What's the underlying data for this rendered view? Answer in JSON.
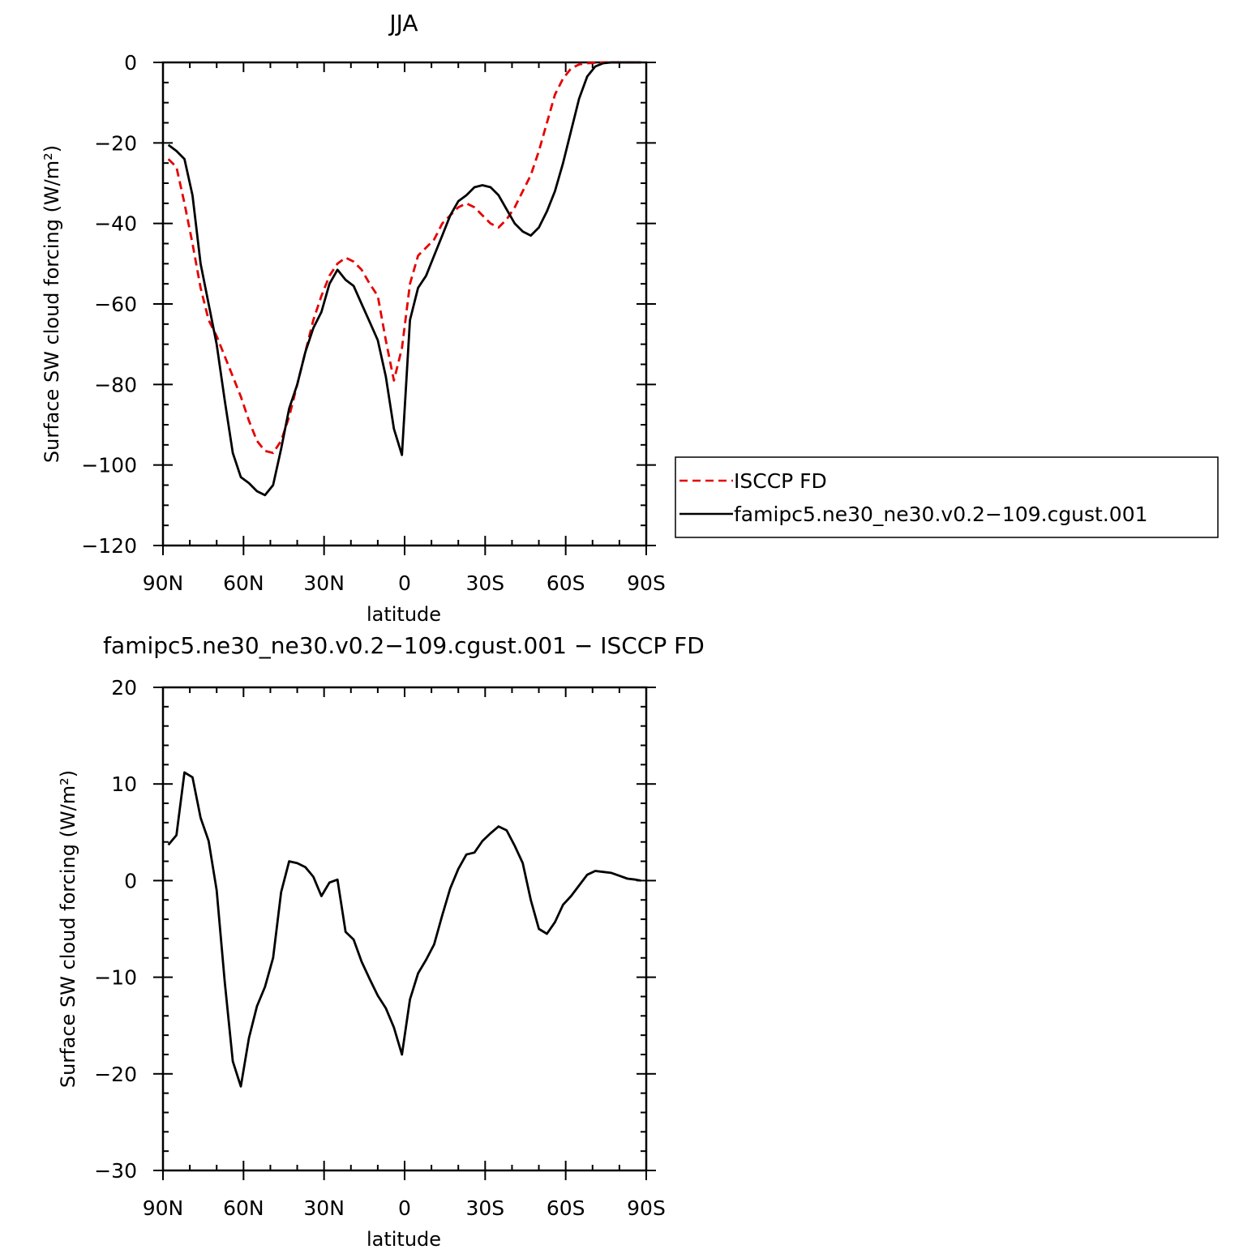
{
  "chart_data": [
    {
      "type": "line",
      "title": "JJA",
      "xlabel": "latitude",
      "ylabel": "Surface SW cloud forcing (W/m²)",
      "xlim": [
        90,
        -90
      ],
      "ylim": [
        -120,
        0
      ],
      "xticks": [
        {
          "value": 90,
          "label": "90N"
        },
        {
          "value": 60,
          "label": "60N"
        },
        {
          "value": 30,
          "label": "30N"
        },
        {
          "value": 0,
          "label": "0"
        },
        {
          "value": -30,
          "label": "30S"
        },
        {
          "value": -60,
          "label": "60S"
        },
        {
          "value": -90,
          "label": "90S"
        }
      ],
      "yticks": [
        {
          "value": 0,
          "label": "0"
        },
        {
          "value": -20,
          "label": "−20"
        },
        {
          "value": -40,
          "label": "−40"
        },
        {
          "value": -60,
          "label": "−60"
        },
        {
          "value": -80,
          "label": "−80"
        },
        {
          "value": -100,
          "label": "−100"
        },
        {
          "value": -120,
          "label": "−120"
        }
      ],
      "legend": {
        "placement": "right",
        "entries": [
          {
            "label": "ISCCP FD",
            "color": "#e60000",
            "style": "dashed"
          },
          {
            "label": "famipc5.ne30_ne30.v0.2−109.cgust.001",
            "color": "#000000",
            "style": "solid"
          }
        ]
      },
      "series": [
        {
          "name": "ISCCP FD",
          "color": "#e60000",
          "style": "dashed",
          "x": [
            88,
            85,
            82,
            79,
            76,
            73,
            70,
            67,
            64,
            61,
            58,
            55,
            52,
            49,
            46,
            43,
            40,
            37,
            34,
            31,
            28,
            25,
            22,
            19,
            16,
            13,
            10,
            7,
            4,
            1,
            -2,
            -5,
            -8,
            -11,
            -14,
            -17,
            -20,
            -23,
            -26,
            -29,
            -32,
            -35,
            -38,
            -41,
            -44,
            -47,
            -50,
            -53,
            -56,
            -59,
            -62,
            -65,
            -68,
            -71,
            -74,
            -77,
            -80,
            -83,
            -86,
            -88
          ],
          "y": [
            -24,
            -26,
            -35,
            -45,
            -56,
            -64,
            -68,
            -73,
            -78,
            -83,
            -89,
            -94,
            -96.5,
            -97,
            -94,
            -88,
            -80,
            -72,
            -64,
            -58,
            -53,
            -50,
            -48.5,
            -49.5,
            -51.5,
            -55,
            -58,
            -69,
            -79,
            -71,
            -55,
            -48,
            -46,
            -44,
            -40,
            -38,
            -36,
            -35,
            -36,
            -38,
            -40,
            -41,
            -39,
            -36,
            -32,
            -28,
            -22,
            -15,
            -8,
            -4,
            -1.5,
            -0.5,
            -0.2,
            -0.1,
            0,
            0,
            0,
            0,
            0,
            0
          ]
        },
        {
          "name": "famipc5.ne30_ne30.v0.2−109.cgust.001",
          "color": "#000000",
          "style": "solid",
          "x": [
            88,
            85,
            82,
            79,
            76,
            73,
            70,
            67,
            64,
            61,
            58,
            55,
            52,
            49,
            46,
            43,
            40,
            37,
            34,
            31,
            28,
            25,
            22,
            19,
            16,
            13,
            10,
            7,
            4,
            1,
            -2,
            -5,
            -8,
            -11,
            -14,
            -17,
            -20,
            -23,
            -26,
            -29,
            -32,
            -35,
            -38,
            -41,
            -44,
            -47,
            -50,
            -53,
            -56,
            -59,
            -62,
            -65,
            -68,
            -71,
            -74,
            -77,
            -80,
            -83,
            -86,
            -88
          ],
          "y": [
            -20.5,
            -22,
            -24,
            -33,
            -50,
            -60,
            -70,
            -84,
            -97,
            -103,
            -104.5,
            -106.5,
            -107.5,
            -105,
            -96,
            -86,
            -80,
            -72,
            -66,
            -62,
            -55,
            -51.5,
            -54,
            -55.5,
            -60,
            -64.5,
            -69,
            -78,
            -91,
            -97.5,
            -64,
            -56,
            -53,
            -48,
            -43,
            -38,
            -34.5,
            -33,
            -31,
            -30.5,
            -31,
            -33,
            -36.5,
            -40,
            -42,
            -43,
            -41,
            -37,
            -32,
            -25,
            -17,
            -9,
            -3.5,
            -1,
            -0.2,
            0,
            0,
            0,
            0,
            0
          ]
        }
      ]
    },
    {
      "type": "line",
      "title": "famipc5.ne30_ne30.v0.2−109.cgust.001 − ISCCP FD",
      "xlabel": "latitude",
      "ylabel": "Surface SW cloud forcing (W/m²)",
      "xlim": [
        90,
        -90
      ],
      "ylim": [
        -30,
        20
      ],
      "xticks": [
        {
          "value": 90,
          "label": "90N"
        },
        {
          "value": 60,
          "label": "60N"
        },
        {
          "value": 30,
          "label": "30N"
        },
        {
          "value": 0,
          "label": "0"
        },
        {
          "value": -30,
          "label": "30S"
        },
        {
          "value": -60,
          "label": "60S"
        },
        {
          "value": -90,
          "label": "90S"
        }
      ],
      "yticks": [
        {
          "value": 20,
          "label": "20"
        },
        {
          "value": 10,
          "label": "10"
        },
        {
          "value": 0,
          "label": "0"
        },
        {
          "value": -10,
          "label": "−10"
        },
        {
          "value": -20,
          "label": "−20"
        },
        {
          "value": -30,
          "label": "−30"
        }
      ],
      "series": [
        {
          "color": "#000000",
          "style": "solid",
          "x": [
            88,
            85,
            82,
            79,
            76,
            73,
            70,
            67,
            64,
            61,
            58,
            55,
            52,
            49,
            46,
            43,
            40,
            37,
            34,
            31,
            28,
            25,
            22,
            19,
            16,
            13,
            10,
            7,
            4,
            1,
            -2,
            -5,
            -8,
            -11,
            -14,
            -17,
            -20,
            -23,
            -26,
            -29,
            -32,
            -35,
            -38,
            -41,
            -44,
            -47,
            -50,
            -53,
            -56,
            -59,
            -62,
            -65,
            -68,
            -71,
            -74,
            -77,
            -80,
            -83,
            -86,
            -88
          ],
          "y": [
            3.7,
            4.7,
            11.2,
            10.7,
            6.5,
            4.1,
            -1,
            -10.5,
            -18.7,
            -21.3,
            -16.3,
            -13,
            -11,
            -8,
            -1.2,
            2,
            1.8,
            1.4,
            0.4,
            -1.6,
            -0.2,
            0.1,
            -5.3,
            -6.1,
            -8.4,
            -10.2,
            -11.9,
            -13.2,
            -15.2,
            -18,
            -12.3,
            -9.6,
            -8.2,
            -6.6,
            -3.6,
            -0.8,
            1.2,
            2.7,
            2.9,
            4.1,
            4.9,
            5.6,
            5.2,
            3.6,
            1.8,
            -2,
            -5,
            -5.5,
            -4.3,
            -2.5,
            -1.6,
            -0.5,
            0.6,
            1,
            0.9,
            0.8,
            0.5,
            0.2,
            0.1,
            0
          ]
        }
      ]
    }
  ]
}
